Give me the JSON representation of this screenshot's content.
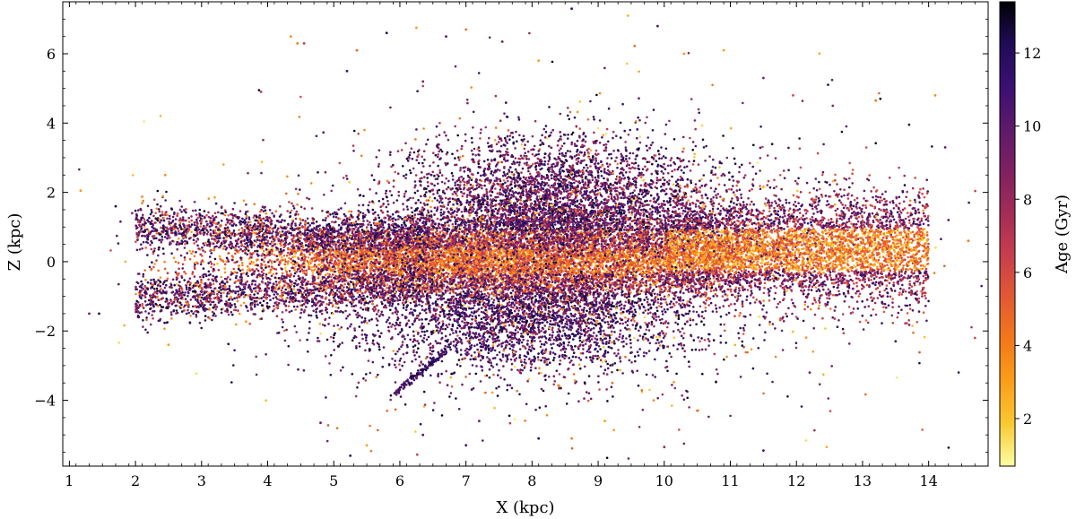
{
  "chart_data": {
    "type": "scatter",
    "title": "",
    "xlabel": "X (kpc)",
    "ylabel": "Z (kpc)",
    "xlim": [
      0.9,
      14.9
    ],
    "ylim": [
      -5.9,
      7.5
    ],
    "grid": false,
    "xticks": [
      1,
      2,
      3,
      4,
      5,
      6,
      7,
      8,
      9,
      10,
      11,
      12,
      13,
      14
    ],
    "xtick_labels": [
      "1",
      "2",
      "3",
      "4",
      "5",
      "6",
      "7",
      "8",
      "9",
      "10",
      "11",
      "12",
      "13",
      "14"
    ],
    "yticks": [
      -4,
      -2,
      0,
      2,
      4,
      6
    ],
    "ytick_labels": [
      "−4",
      "−2",
      "0",
      "2",
      "4",
      "6"
    ],
    "colorbar": {
      "label": "Age (Gyr)",
      "lim": [
        0.7,
        13.4
      ],
      "ticks": [
        2,
        4,
        6,
        8,
        10,
        12
      ],
      "tick_labels": [
        "2",
        "4",
        "6",
        "8",
        "10",
        "12"
      ],
      "colormap": "inferno_r",
      "stops": [
        "#fcffa4",
        "#f9c932",
        "#fa9e1a",
        "#f37819",
        "#e35933",
        "#c73e4c",
        "#a32c58",
        "#7e2160",
        "#5c1a6a",
        "#3a1071",
        "#200c56",
        "#000004"
      ]
    },
    "series": [
      {
        "values": [
          [
            1.17,
            2.05,
            3.2
          ],
          [
            1.45,
            -1.5,
            11.8
          ],
          [
            1.7,
            1.6,
            12.5
          ],
          [
            1.95,
            1.4,
            8.0
          ],
          [
            2.05,
            -1.6,
            11.0
          ],
          [
            2.45,
            2.5,
            3.5
          ],
          [
            2.5,
            -2.4,
            3.0
          ],
          [
            3.9,
            4.9,
            7.0
          ],
          [
            4.35,
            6.5,
            3.5
          ],
          [
            4.45,
            6.3,
            4.0
          ],
          [
            4.55,
            6.3,
            6.5
          ],
          [
            5.2,
            5.5,
            11.0
          ],
          [
            5.35,
            6.1,
            5.0
          ],
          [
            5.8,
            6.6,
            12.5
          ],
          [
            6.25,
            6.75,
            3.0
          ],
          [
            6.35,
            5.2,
            9.0
          ],
          [
            6.7,
            6.5,
            10.0
          ],
          [
            7.0,
            6.7,
            4.5
          ],
          [
            7.55,
            6.35,
            9.5
          ],
          [
            8.1,
            5.8,
            3.0
          ],
          [
            8.6,
            7.3,
            11.0
          ],
          [
            9.45,
            7.1,
            2.5
          ],
          [
            9.9,
            6.8,
            10.5
          ],
          [
            10.3,
            6.0,
            3.5
          ],
          [
            10.9,
            6.1,
            3.0
          ],
          [
            11.5,
            5.3,
            9.0
          ],
          [
            11.95,
            4.8,
            6.0
          ],
          [
            12.55,
            4.5,
            8.5
          ],
          [
            13.2,
            4.65,
            4.0
          ],
          [
            14.1,
            4.8,
            3.5
          ],
          [
            14.6,
            0.6,
            4.0
          ],
          [
            14.7,
            -2.2,
            6.0
          ],
          [
            14.3,
            1.2,
            10.0
          ],
          [
            14.25,
            3.3,
            9.5
          ],
          [
            4.8,
            -4.65,
            9.5
          ],
          [
            5.5,
            -5.3,
            3.0
          ],
          [
            5.25,
            -5.6,
            11.5
          ],
          [
            6.35,
            -5.0,
            10.0
          ],
          [
            7.0,
            -5.3,
            11.0
          ],
          [
            7.2,
            -4.6,
            9.0
          ],
          [
            8.1,
            -5.1,
            12.0
          ],
          [
            8.6,
            -5.1,
            4.0
          ],
          [
            9.1,
            -4.6,
            3.0
          ],
          [
            10.0,
            -5.35,
            8.0
          ],
          [
            10.5,
            -4.3,
            5.0
          ],
          [
            11.5,
            -5.45,
            11.0
          ],
          [
            12.2,
            -3.2,
            9.0
          ],
          [
            13.5,
            -2.3,
            11.0
          ],
          [
            1.3,
            -1.5,
            9.0
          ],
          [
            3.1,
            -0.9,
            2.0
          ]
        ]
      }
    ]
  }
}
